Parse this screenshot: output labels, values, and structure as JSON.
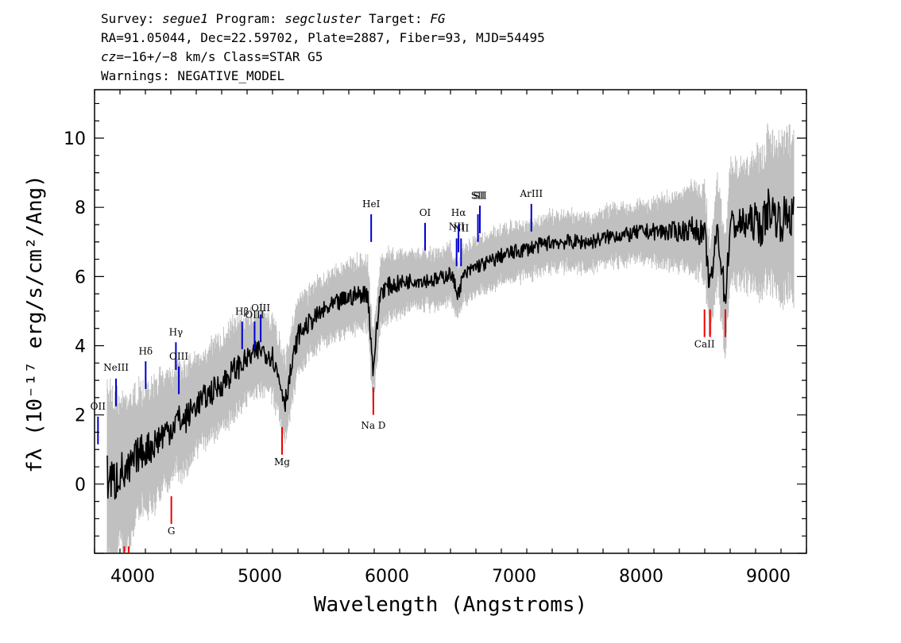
{
  "header": {
    "line1": {
      "survey_label": "Survey: ",
      "survey": "segue1",
      "program_label": " Program: ",
      "program": "segcluster",
      "target_label": " Target: ",
      "target": "FG"
    },
    "line2": "RA=91.05044, Dec=22.59702, Plate=2887, Fiber=93, MJD=54495",
    "line3": {
      "cz_label": "cz",
      "cz_text": "=−16+/−8 km/s Class=STAR G5"
    },
    "line4": "Warnings: NEGATIVE_MODEL"
  },
  "chart_data": {
    "type": "line",
    "xlabel": "Wavelength (Angstroms)",
    "ylabel": "fλ (10⁻¹⁷ erg/s/cm²/Ang)",
    "xlim": [
      3700,
      9300
    ],
    "ylim": [
      -2,
      11.4
    ],
    "x_ticks": [
      4000,
      5000,
      6000,
      7000,
      8000,
      9000
    ],
    "y_ticks": [
      0,
      2,
      4,
      6,
      8,
      10
    ],
    "grid": false,
    "series": [
      {
        "role": "flux",
        "color": "#000000",
        "x": [
          3800,
          3850,
          3900,
          3950,
          4000,
          4050,
          4100,
          4150,
          4200,
          4250,
          4300,
          4350,
          4400,
          4500,
          4600,
          4700,
          4800,
          4900,
          5000,
          5100,
          5200,
          5300,
          5400,
          5500,
          5600,
          5700,
          5800,
          5850,
          5890,
          5950,
          6000,
          6100,
          6200,
          6300,
          6400,
          6500,
          6560,
          6600,
          6700,
          6800,
          6900,
          7000,
          7100,
          7200,
          7300,
          7400,
          7500,
          7600,
          7700,
          7800,
          7900,
          8000,
          8100,
          8200,
          8300,
          8400,
          8500,
          8542,
          8600,
          8662,
          8700,
          8800,
          8900,
          8950,
          9000,
          9100,
          9150,
          9200
        ],
        "y": [
          0.3,
          0.0,
          0.4,
          0.2,
          0.6,
          0.9,
          1.0,
          1.1,
          1.3,
          1.5,
          1.6,
          1.9,
          1.8,
          2.3,
          2.6,
          2.9,
          3.3,
          3.6,
          3.9,
          3.7,
          2.4,
          4.3,
          4.7,
          5.0,
          5.2,
          5.4,
          5.5,
          5.5,
          3.3,
          5.6,
          5.7,
          5.8,
          5.9,
          5.9,
          5.9,
          6.1,
          5.5,
          6.0,
          6.3,
          6.4,
          6.6,
          6.7,
          6.8,
          6.9,
          7.0,
          7.0,
          7.0,
          7.0,
          7.1,
          7.2,
          7.2,
          7.3,
          7.3,
          7.3,
          7.3,
          7.4,
          7.2,
          5.6,
          7.4,
          5.3,
          7.5,
          7.5,
          7.6,
          7.4,
          8.0,
          7.6,
          7.8,
          7.7
        ]
      },
      {
        "role": "error",
        "color": "#c0c0c0",
        "x": [
          3800,
          3900,
          4000,
          4100,
          4200,
          4300,
          4400,
          4500,
          4600,
          4700,
          4800,
          4900,
          5000,
          5200,
          5400,
          5600,
          5800,
          6000,
          6200,
          6400,
          6600,
          6800,
          7000,
          7200,
          7400,
          7600,
          7800,
          8000,
          8200,
          8400,
          8600,
          8800,
          9000,
          9200
        ],
        "y": [
          1.4,
          1.2,
          1.0,
          0.9,
          0.9,
          0.8,
          0.8,
          0.7,
          0.7,
          0.7,
          0.7,
          0.6,
          0.6,
          0.6,
          0.5,
          0.5,
          0.5,
          0.5,
          0.4,
          0.4,
          0.4,
          0.4,
          0.4,
          0.4,
          0.4,
          0.4,
          0.4,
          0.4,
          0.5,
          0.6,
          0.8,
          0.9,
          1.1,
          1.2
        ]
      }
    ],
    "emission_lines": {
      "color": "#0000cc",
      "lines": [
        {
          "label": "OII",
          "x": 3727,
          "y_label": 2.15,
          "y_top": 1.95,
          "y_bottom": 1.15
        },
        {
          "label": "NeIII",
          "x": 3869,
          "y_label": 3.28,
          "y_top": 3.05,
          "y_bottom": 2.25
        },
        {
          "label": "Hδ",
          "x": 4102,
          "y_label": 3.75,
          "y_top": 3.55,
          "y_bottom": 2.75
        },
        {
          "label": "Hγ",
          "x": 4340,
          "y_label": 4.3,
          "y_top": 4.1,
          "y_bottom": 3.3
        },
        {
          "label": "OIII",
          "x": 4363,
          "y_label": 3.6,
          "y_top": 3.4,
          "y_bottom": 2.6
        },
        {
          "label": "Hβ",
          "x": 4861,
          "y_label": 4.9,
          "y_top": 4.7,
          "y_bottom": 3.9
        },
        {
          "label": "OIII",
          "x": 4959,
          "y_label": 4.8,
          "y_top": 4.7,
          "y_bottom": 3.9
        },
        {
          "label": "OIII",
          "x": 5007,
          "y_label": 5.0,
          "y_top": 4.9,
          "y_bottom": 4.1
        },
        {
          "label": "HeI",
          "x": 5876,
          "y_label": 8.0,
          "y_top": 7.8,
          "y_bottom": 7.0
        },
        {
          "label": "OI",
          "x": 6300,
          "y_label": 7.75,
          "y_top": 7.55,
          "y_bottom": 6.75
        },
        {
          "label": "NII",
          "x": 6548,
          "y_label": 7.35,
          "y_top": 7.1,
          "y_bottom": 6.3
        },
        {
          "label": "Hα",
          "x": 6563,
          "y_label": 7.75,
          "y_top": 7.5,
          "y_bottom": 6.7
        },
        {
          "label": "NII",
          "x": 6583,
          "y_label": 7.3,
          "y_top": 7.1,
          "y_bottom": 6.3
        },
        {
          "label": "SII",
          "x": 6716,
          "y_label": 8.25,
          "y_top": 7.8,
          "y_bottom": 7.0
        },
        {
          "label": "SII",
          "x": 6731,
          "y_label": 8.25,
          "y_top": 8.05,
          "y_bottom": 7.25
        },
        {
          "label": "ArIII",
          "x": 7136,
          "y_label": 8.3,
          "y_top": 8.1,
          "y_bottom": 7.3
        }
      ]
    },
    "absorption_lines": {
      "color": "#ee0000",
      "lines": [
        {
          "label": "Na D",
          "x": 5893,
          "y_label": 1.6,
          "y_top": 2.8,
          "y_bottom": 2.0
        },
        {
          "label": "Mg",
          "x": 5175,
          "y_label": 0.55,
          "y_top": 1.65,
          "y_bottom": 0.85
        },
        {
          "label": "G",
          "x": 4304,
          "y_label": -1.45,
          "y_top": -0.35,
          "y_bottom": -1.15
        },
        {
          "label": "CaII",
          "x": 8498,
          "y_label": 3.95,
          "y_top": 5.05,
          "y_bottom": 4.25
        },
        {
          "label": "",
          "x": 8542,
          "y_top": 5.05,
          "y_bottom": 4.25
        },
        {
          "label": "",
          "x": 8662,
          "y_top": 5.05,
          "y_bottom": 4.25
        },
        {
          "label": "",
          "x": 3934,
          "y_top": -1.8,
          "y_bottom": -2.6
        },
        {
          "label": "",
          "x": 3969,
          "y_top": -1.8,
          "y_bottom": -2.6
        }
      ]
    }
  }
}
